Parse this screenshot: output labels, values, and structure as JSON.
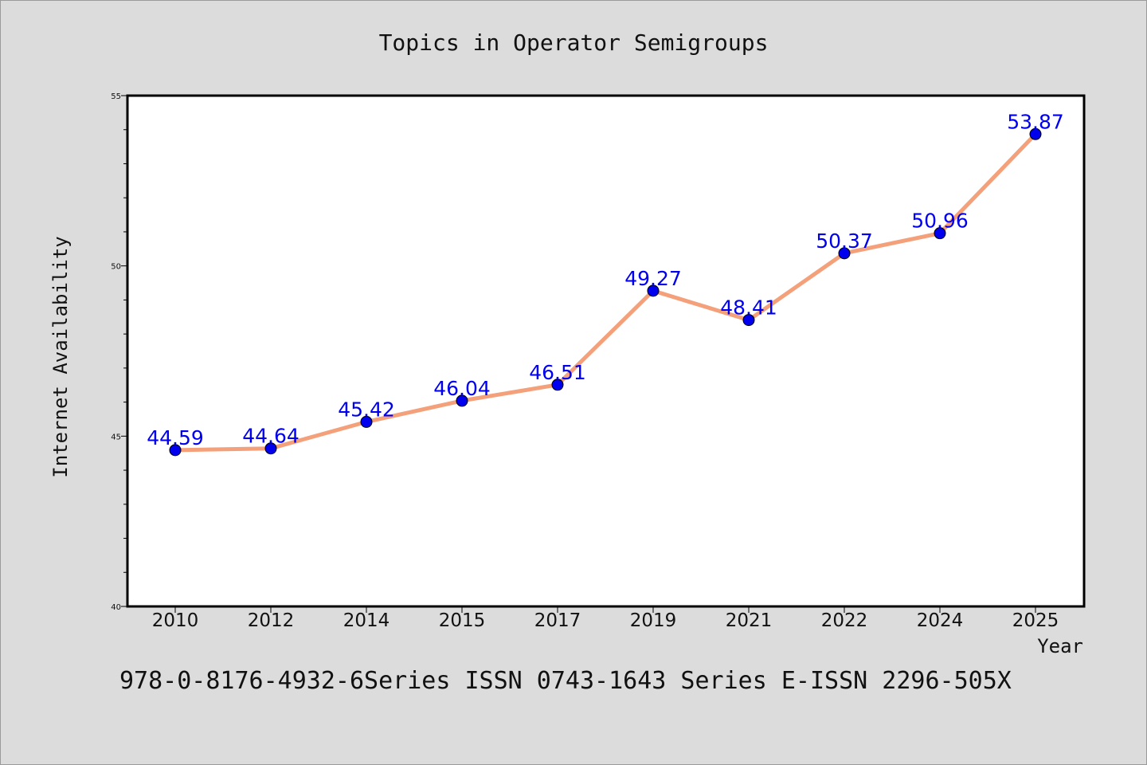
{
  "chart_data": {
    "type": "line",
    "title": "Topics in Operator Semigroups",
    "xlabel": "Year",
    "ylabel": "Internet Availability",
    "categories": [
      "2010",
      "2012",
      "2014",
      "2015",
      "2017",
      "2019",
      "2021",
      "2022",
      "2024",
      "2025"
    ],
    "series": [
      {
        "values": [
          44.59,
          44.64,
          45.42,
          46.04,
          46.51,
          49.27,
          48.41,
          50.37,
          50.96,
          53.87
        ],
        "data_labels": [
          "44.59",
          "44.64",
          "45.42",
          "46.04",
          "46.51",
          "49.27",
          "48.41",
          "50.37",
          "50.96",
          "53.87"
        ]
      }
    ],
    "ylim": [
      40,
      55
    ],
    "y_major_ticks": [
      40,
      45,
      50,
      55
    ],
    "y_minor_step": 1,
    "grid": false,
    "legend": "none",
    "colors": {
      "line": "#f4a07a",
      "marker": "#0000ee",
      "label": "#0000ee",
      "background": "#dcdcdc",
      "plot_background": "#ffffff"
    }
  },
  "footer": "978-0-8176-4932-6Series ISSN 0743-1643 Series E-ISSN 2296-505X"
}
